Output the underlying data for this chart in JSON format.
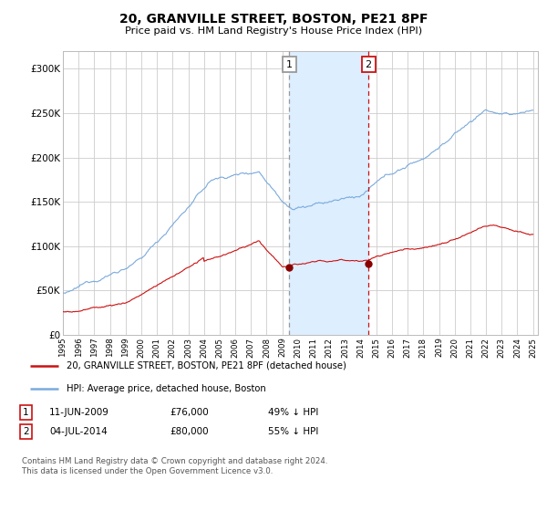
{
  "title": "20, GRANVILLE STREET, BOSTON, PE21 8PF",
  "subtitle": "Price paid vs. HM Land Registry's House Price Index (HPI)",
  "title_fontsize": 10,
  "subtitle_fontsize": 8.5,
  "hpi_color": "#7aaadd",
  "price_color": "#cc1111",
  "marker_color": "#880000",
  "vline1_color": "#999999",
  "vline2_color": "#cc1111",
  "shade_color": "#ddeeff",
  "ylim": [
    0,
    320000
  ],
  "yticks": [
    0,
    50000,
    100000,
    150000,
    200000,
    250000,
    300000
  ],
  "ytick_labels": [
    "£0",
    "£50K",
    "£100K",
    "£150K",
    "£200K",
    "£250K",
    "£300K"
  ],
  "legend_line1": "20, GRANVILLE STREET, BOSTON, PE21 8PF (detached house)",
  "legend_line2": "HPI: Average price, detached house, Boston",
  "annotation1_label": "1",
  "annotation1_date": "11-JUN-2009",
  "annotation1_price": "£76,000",
  "annotation1_hpi": "49% ↓ HPI",
  "annotation1_year": 2009.44,
  "annotation1_value": 76000,
  "annotation2_label": "2",
  "annotation2_date": "04-JUL-2014",
  "annotation2_price": "£80,000",
  "annotation2_hpi": "55% ↓ HPI",
  "annotation2_year": 2014.5,
  "annotation2_value": 80000,
  "footer": "Contains HM Land Registry data © Crown copyright and database right 2024.\nThis data is licensed under the Open Government Licence v3.0.",
  "background_color": "#ffffff",
  "grid_color": "#cccccc"
}
